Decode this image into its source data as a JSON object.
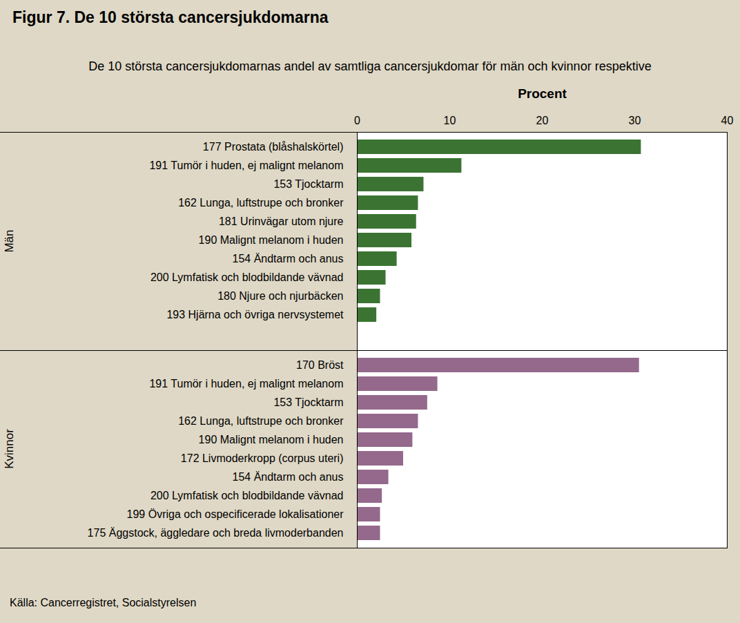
{
  "chart_data": {
    "type": "bar",
    "title": "Figur 7. De 10 största cancersjukdomarna",
    "subtitle": "De 10 största cancersjukdomarnas andel av samtliga cancersjukdomar för män och kvinnor respektive",
    "x_label": "Procent",
    "source": "Källa: Cancerregistret, Socialstyrelsen",
    "orientation": "horizontal",
    "xlim": [
      0,
      40
    ],
    "xticks": [
      0,
      10,
      20,
      30,
      40
    ],
    "grid": false,
    "data_labels": false,
    "series": [
      {
        "name": "Män",
        "color": "#3b7432",
        "categories": [
          "177 Prostata (blåshalskörtel)",
          "191 Tumör i huden, ej malignt melanom",
          "153 Tjocktarm",
          "162 Lunga, luftstrupe och bronker",
          "181 Urinvägar utom njure",
          "190 Malignt melanom i huden",
          "154 Ändtarm och anus",
          "200 Lymfatisk och blodbildande vävnad",
          "180 Njure och njurbäcken",
          "193 Hjärna och övriga nervsystemet"
        ],
        "values": [
          30.7,
          11.3,
          7.2,
          6.6,
          6.4,
          5.9,
          4.3,
          3.1,
          2.5,
          2.1
        ]
      },
      {
        "name": "Kvinnor",
        "color": "#94698c",
        "categories": [
          "170 Bröst",
          "191 Tumör i huden, ej malignt melanom",
          "153 Tjocktarm",
          "162 Lunga, luftstrupe och bronker",
          "190 Malignt melanom i huden",
          "172 Livmoderkropp (corpus uteri)",
          "154 Ändtarm och anus",
          "200 Lymfatisk och blodbildande vävnad",
          "199 Övriga och ospecificerade lokalisationer",
          "175 Äggstock, äggledare och breda livmoderbanden"
        ],
        "values": [
          30.5,
          8.7,
          7.6,
          6.6,
          6.0,
          5.0,
          3.4,
          2.7,
          2.5,
          2.5
        ]
      }
    ]
  }
}
